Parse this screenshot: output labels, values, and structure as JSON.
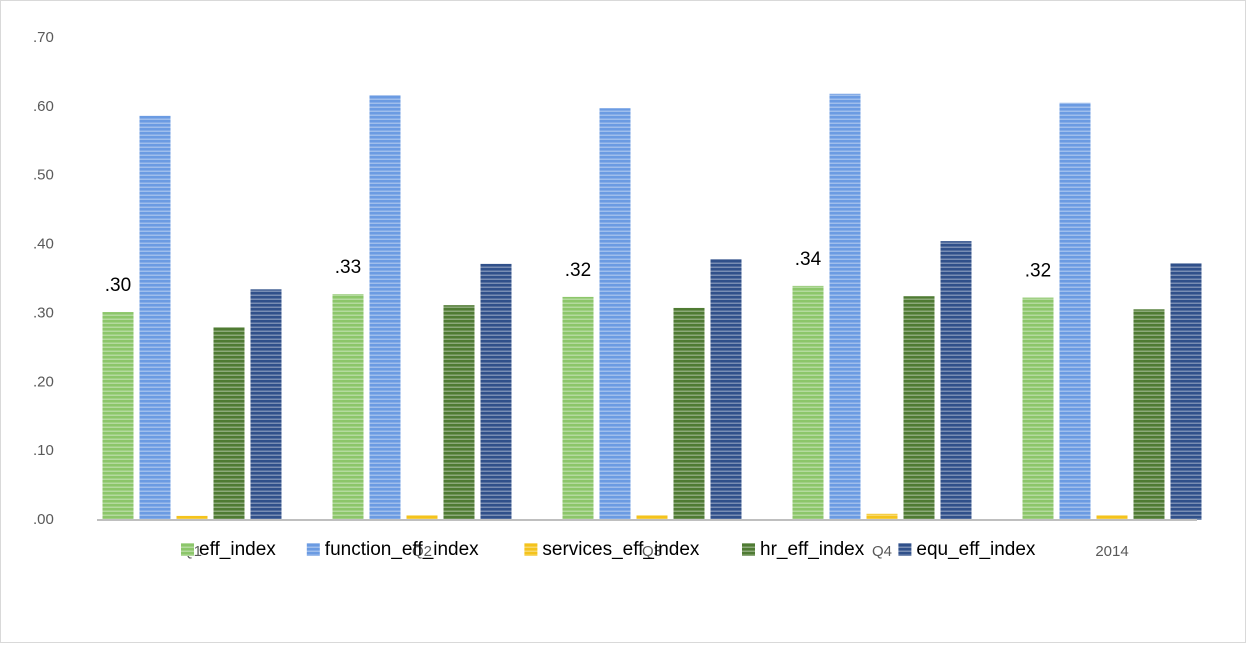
{
  "chart_data": {
    "type": "bar",
    "categories": [
      "Q1",
      "Q2",
      "Q3",
      "Q4",
      "2014"
    ],
    "series": [
      {
        "name": "eff_index",
        "color": "#8cc66a",
        "values": [
          0.302,
          0.328,
          0.324,
          0.34,
          0.323
        ],
        "value_labels": [
          ".30",
          ".33",
          ".32",
          ".34",
          ".32"
        ]
      },
      {
        "name": "function_eff_index",
        "color": "#6b9be2",
        "values": [
          0.587,
          0.617,
          0.598,
          0.619,
          0.606
        ]
      },
      {
        "name": "services_eff_index",
        "color": "#f4c31c",
        "values": [
          0.006,
          0.007,
          0.007,
          0.009,
          0.007
        ]
      },
      {
        "name": "hr_eff_index",
        "color": "#4f7b33",
        "values": [
          0.28,
          0.312,
          0.308,
          0.325,
          0.306
        ]
      },
      {
        "name": "equ_eff_index",
        "color": "#30508a",
        "values": [
          0.335,
          0.372,
          0.379,
          0.405,
          0.373
        ]
      }
    ],
    "ylim": [
      0,
      0.7
    ],
    "yticks": [
      {
        "value": 0,
        "label": ".00"
      },
      {
        "value": 0.1,
        "label": ".10"
      },
      {
        "value": 0.2,
        "label": ".20"
      },
      {
        "value": 0.3,
        "label": ".30"
      },
      {
        "value": 0.4,
        "label": ".40"
      },
      {
        "value": 0.5,
        "label": ".50"
      },
      {
        "value": 0.6,
        "label": ".60"
      },
      {
        "value": 0.7,
        "label": ".70"
      }
    ],
    "legend": "bottom"
  }
}
